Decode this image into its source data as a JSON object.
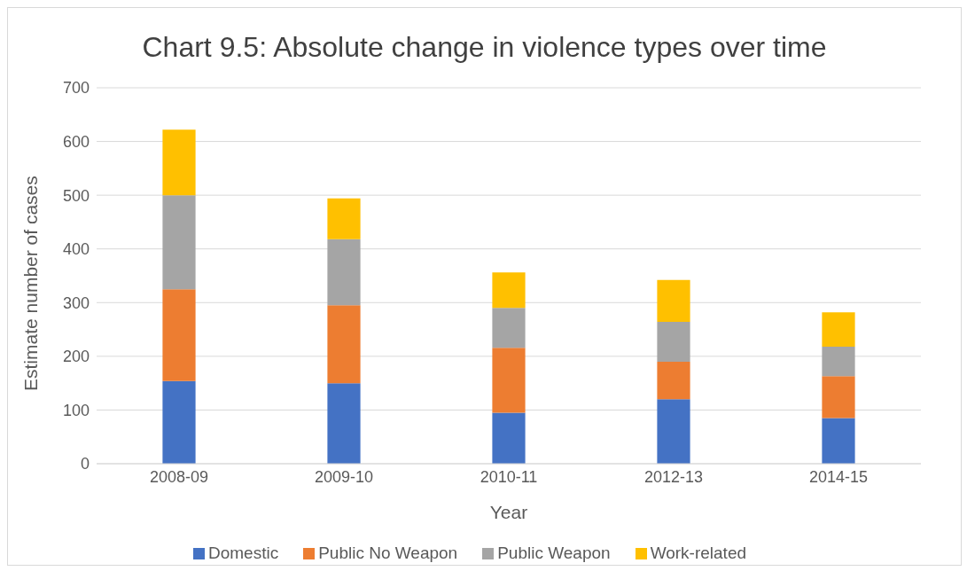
{
  "chart_data": {
    "type": "bar",
    "title": "Chart 9.5: Absolute change in violence types over time",
    "xlabel": "Year",
    "ylabel": "Estimate number of cases",
    "categories": [
      "2008-09",
      "2009-10",
      "2010-11",
      "2012-13",
      "2014-15"
    ],
    "stacked": true,
    "series": [
      {
        "name": "Domestic",
        "color": "#4472c4",
        "values": [
          154,
          150,
          95,
          120,
          85
        ]
      },
      {
        "name": "Public No Weapon",
        "color": "#ed7d31",
        "values": [
          171,
          145,
          121,
          70,
          78
        ]
      },
      {
        "name": "Public Weapon",
        "color": "#a5a5a5",
        "values": [
          175,
          123,
          74,
          74,
          55
        ]
      },
      {
        "name": "Work-related",
        "color": "#ffc000",
        "values": [
          122,
          76,
          66,
          78,
          64
        ]
      }
    ],
    "ylim": [
      0,
      700
    ],
    "yticks": [
      0,
      100,
      200,
      300,
      400,
      500,
      600,
      700
    ],
    "grid": "y",
    "legend": "bottom"
  }
}
